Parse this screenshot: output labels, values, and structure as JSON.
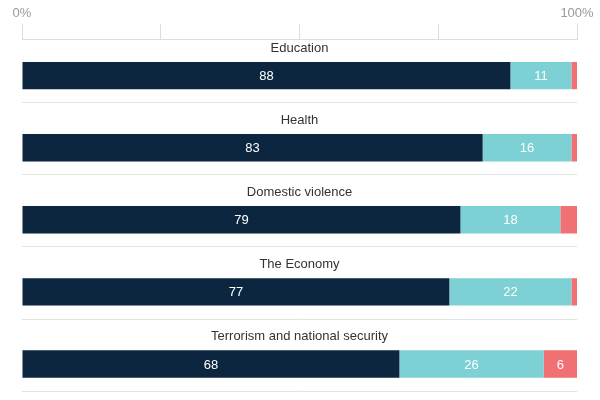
{
  "chart_data": {
    "type": "bar",
    "orientation": "horizontal",
    "stacked": true,
    "data_labels": true,
    "categories": [
      "Education",
      "Health",
      "Domestic violence",
      "The Economy",
      "Terrorism and national security"
    ],
    "series": [
      {
        "color": "#0c2640",
        "values": [
          88,
          83,
          79,
          77,
          68
        ]
      },
      {
        "color": "#7dd0d3",
        "values": [
          11,
          16,
          18,
          22,
          26
        ]
      },
      {
        "color": "#f07074",
        "values": [
          1,
          1,
          3,
          1,
          6
        ],
        "value_labels": [
          null,
          null,
          null,
          null,
          "6"
        ]
      }
    ],
    "xlim": [
      0,
      100
    ],
    "xticks": [
      {
        "value": 0,
        "label": "0%"
      },
      {
        "value": 25,
        "label": null
      },
      {
        "value": 50,
        "label": null
      },
      {
        "value": 75,
        "label": null
      },
      {
        "value": 100,
        "label": "100%"
      }
    ]
  }
}
